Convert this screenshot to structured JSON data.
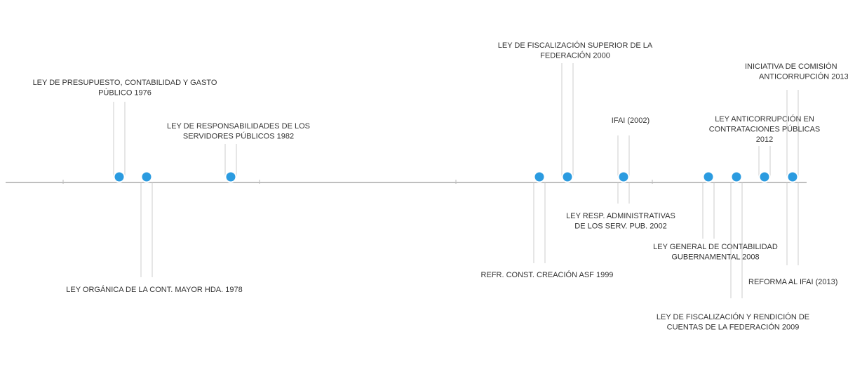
{
  "events": [
    {
      "label": [
        "LEY DE PRESUPUESTO, CONTABILIDAD Y GASTO",
        "PÚBLICO 1976"
      ]
    },
    {
      "label": [
        "LEY ORGÁNICA DE LA CONT. MAYOR HDA. 1978"
      ]
    },
    {
      "label": [
        "LEY DE RESPONSABILIDADES DE LOS",
        "SERVIDORES PÚBLICOS 1982"
      ]
    },
    {
      "label": [
        "REFR. CONST. CREACIÓN ASF 1999"
      ]
    },
    {
      "label": [
        "LEY DE FISCALIZACIÓN SUPERIOR DE LA",
        "FEDERACIÓN 2000"
      ]
    },
    {
      "label": [
        "IFAI (2002)"
      ]
    },
    {
      "label": [
        "LEY RESP. ADMINISTRATIVAS",
        "DE LOS SERV. PUB. 2002"
      ]
    },
    {
      "label": [
        "LEY GENERAL DE CONTABILIDAD",
        "GUBERNAMENTAL 2008"
      ]
    },
    {
      "label": [
        "LEY DE FISCALIZACIÓN Y RENDICIÓN DE",
        "CUENTAS DE LA FEDERACIÓN 2009"
      ]
    },
    {
      "label": [
        "LEY ANTICORRUPCIÓN EN",
        "CONTRATACIONES PÚBLICAS",
        "2012"
      ]
    },
    {
      "label": [
        "INICIATIVA DE COMISIÓN",
        "ANTICORRUPCIÓN 2013"
      ]
    },
    {
      "label": [
        "REFORMA AL IFAI (2013)"
      ]
    }
  ]
}
